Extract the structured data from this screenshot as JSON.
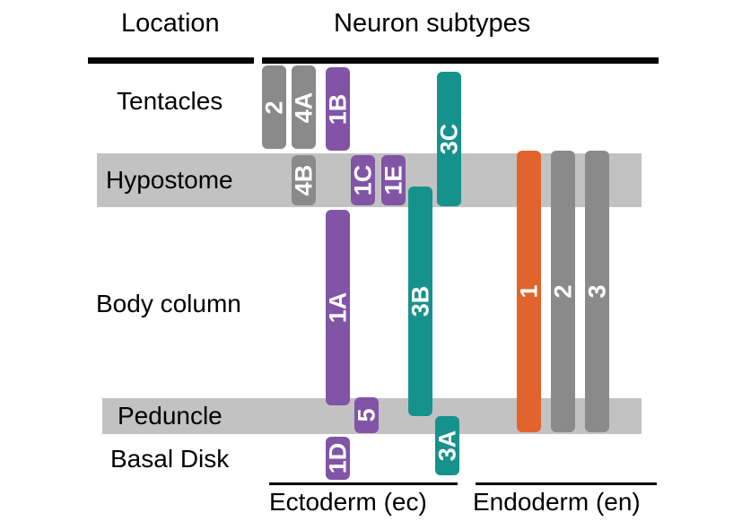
{
  "headers": {
    "location": "Location",
    "neuron_subtypes": "Neuron subtypes"
  },
  "locations": {
    "tentacles": "Tentacles",
    "hypostome": "Hypostome",
    "body_column": "Body column",
    "peduncle": "Peduncle",
    "basal_disk": "Basal Disk"
  },
  "groups": {
    "ectoderm": "Ectoderm (ec)",
    "endoderm": "Endoderm (en)"
  },
  "colors": {
    "ectoderm_purple": "#8154a6",
    "ectoderm_gray": "#8a8a8a",
    "ectoderm_teal": "#15928c",
    "endoderm_orange": "#e0642b",
    "endoderm_gray": "#8a8a8a",
    "band_gray": "#c3c2c2"
  },
  "subtypes": {
    "ec2": "2",
    "ec4A": "4A",
    "ec1B": "1B",
    "ec3C": "3C",
    "ec4B": "4B",
    "ec1C": "1C",
    "ec1E": "1E",
    "ec1A": "1A",
    "ec3B": "3B",
    "ec5": "5",
    "ec1D": "1D",
    "ec3A": "3A",
    "en1": "1",
    "en2": "2",
    "en3": "3"
  }
}
